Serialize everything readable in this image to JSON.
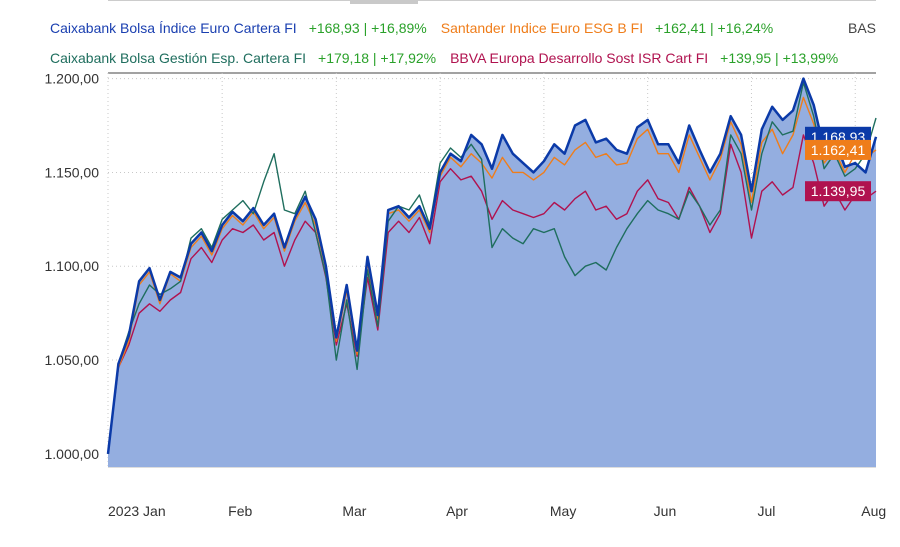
{
  "base_label": "BAS",
  "legend": [
    {
      "name": "Caixabank Bolsa Índice Euro Cartera FI",
      "value": "+168,93 | +16,89%",
      "color": "#1a3fb0"
    },
    {
      "name": "Santander Indice Euro ESG B FI",
      "value": "+162,41 | +16,24%",
      "color": "#ef7d1a"
    },
    {
      "name": "Caixabank Bolsa Gestión Esp. Cartera FI",
      "value": "+179,18 | +17,92%",
      "color": "#1f6e5e"
    },
    {
      "name": "BBVA Europa Desarrollo Sost ISR Cart FI",
      "value": "+139,95 | +13,99%",
      "color": "#b0124f"
    }
  ],
  "chart_data": {
    "type": "line",
    "title": "",
    "xlabel": "",
    "ylabel": "",
    "ylim": [
      993,
      1203
    ],
    "y_ticks": [
      "1.000,00",
      "1.050,00",
      "1.100,00",
      "1.150,00",
      "1.200,00"
    ],
    "y_tick_values": [
      1000,
      1050,
      1100,
      1150,
      1200
    ],
    "x_ticks": [
      "2023 Jan",
      "Feb",
      "Mar",
      "Apr",
      "May",
      "Jun",
      "Jul",
      "Aug"
    ],
    "x_tick_index": [
      0,
      11,
      22,
      32,
      42,
      52,
      62,
      72
    ],
    "grid": true,
    "end_labels": [
      "1.168,93",
      "1.162,41",
      "1.139,95"
    ],
    "series": [
      {
        "name": "Caixabank Bolsa Índice Euro Cartera FI",
        "color": "#0b3aa8",
        "fill": "#94aee0",
        "values": [
          1000,
          1048,
          1063,
          1092,
          1099,
          1082,
          1097,
          1094,
          1112,
          1118,
          1108,
          1122,
          1129,
          1124,
          1131,
          1122,
          1128,
          1110,
          1126,
          1137,
          1125,
          1100,
          1062,
          1090,
          1055,
          1105,
          1074,
          1130,
          1132,
          1126,
          1132,
          1120,
          1150,
          1160,
          1156,
          1170,
          1165,
          1152,
          1170,
          1160,
          1155,
          1150,
          1156,
          1165,
          1160,
          1175,
          1178,
          1166,
          1168,
          1162,
          1160,
          1174,
          1178,
          1165,
          1165,
          1155,
          1175,
          1162,
          1150,
          1160,
          1180,
          1170,
          1140,
          1173,
          1185,
          1178,
          1183,
          1200,
          1186,
          1162,
          1168,
          1153,
          1155,
          1150,
          1169
        ]
      },
      {
        "name": "Santander Indice Euro ESG B FI",
        "color": "#ef7d1a",
        "values": [
          1000,
          1046,
          1060,
          1090,
          1097,
          1080,
          1096,
          1092,
          1110,
          1116,
          1106,
          1120,
          1127,
          1122,
          1129,
          1120,
          1126,
          1108,
          1124,
          1134,
          1122,
          1098,
          1060,
          1087,
          1053,
          1102,
          1072,
          1128,
          1130,
          1124,
          1130,
          1118,
          1148,
          1158,
          1153,
          1160,
          1155,
          1147,
          1158,
          1150,
          1150,
          1146,
          1150,
          1158,
          1154,
          1162,
          1166,
          1158,
          1160,
          1154,
          1155,
          1168,
          1173,
          1160,
          1160,
          1150,
          1170,
          1158,
          1146,
          1157,
          1177,
          1165,
          1134,
          1166,
          1173,
          1160,
          1170,
          1190,
          1176,
          1155,
          1162,
          1150,
          1160,
          1158,
          1162
        ]
      },
      {
        "name": "Caixabank Bolsa Gestión Esp. Cartera FI",
        "color": "#1f6e5e",
        "values": [
          1000,
          1048,
          1065,
          1080,
          1090,
          1085,
          1088,
          1092,
          1115,
          1120,
          1110,
          1125,
          1130,
          1135,
          1128,
          1145,
          1160,
          1130,
          1128,
          1140,
          1118,
          1095,
          1050,
          1082,
          1045,
          1098,
          1068,
          1124,
          1132,
          1130,
          1138,
          1122,
          1155,
          1163,
          1158,
          1165,
          1157,
          1110,
          1120,
          1115,
          1112,
          1120,
          1118,
          1120,
          1105,
          1095,
          1100,
          1102,
          1098,
          1110,
          1120,
          1128,
          1135,
          1130,
          1128,
          1125,
          1140,
          1132,
          1122,
          1130,
          1170,
          1160,
          1130,
          1160,
          1177,
          1170,
          1172,
          1198,
          1180,
          1152,
          1160,
          1148,
          1152,
          1160,
          1179
        ]
      },
      {
        "name": "BBVA Europa Desarrollo Sost ISR Cart FI",
        "color": "#b0124f",
        "values": [
          1000,
          1046,
          1058,
          1075,
          1080,
          1076,
          1082,
          1086,
          1104,
          1110,
          1102,
          1114,
          1120,
          1118,
          1122,
          1114,
          1118,
          1100,
          1114,
          1124,
          1118,
          1094,
          1058,
          1080,
          1052,
          1094,
          1066,
          1118,
          1124,
          1118,
          1126,
          1112,
          1145,
          1152,
          1146,
          1148,
          1140,
          1125,
          1135,
          1130,
          1128,
          1126,
          1128,
          1134,
          1130,
          1136,
          1140,
          1130,
          1132,
          1125,
          1128,
          1140,
          1146,
          1136,
          1134,
          1125,
          1142,
          1132,
          1118,
          1128,
          1165,
          1150,
          1115,
          1140,
          1145,
          1138,
          1142,
          1170,
          1155,
          1132,
          1140,
          1130,
          1138,
          1136,
          1140
        ]
      }
    ]
  }
}
